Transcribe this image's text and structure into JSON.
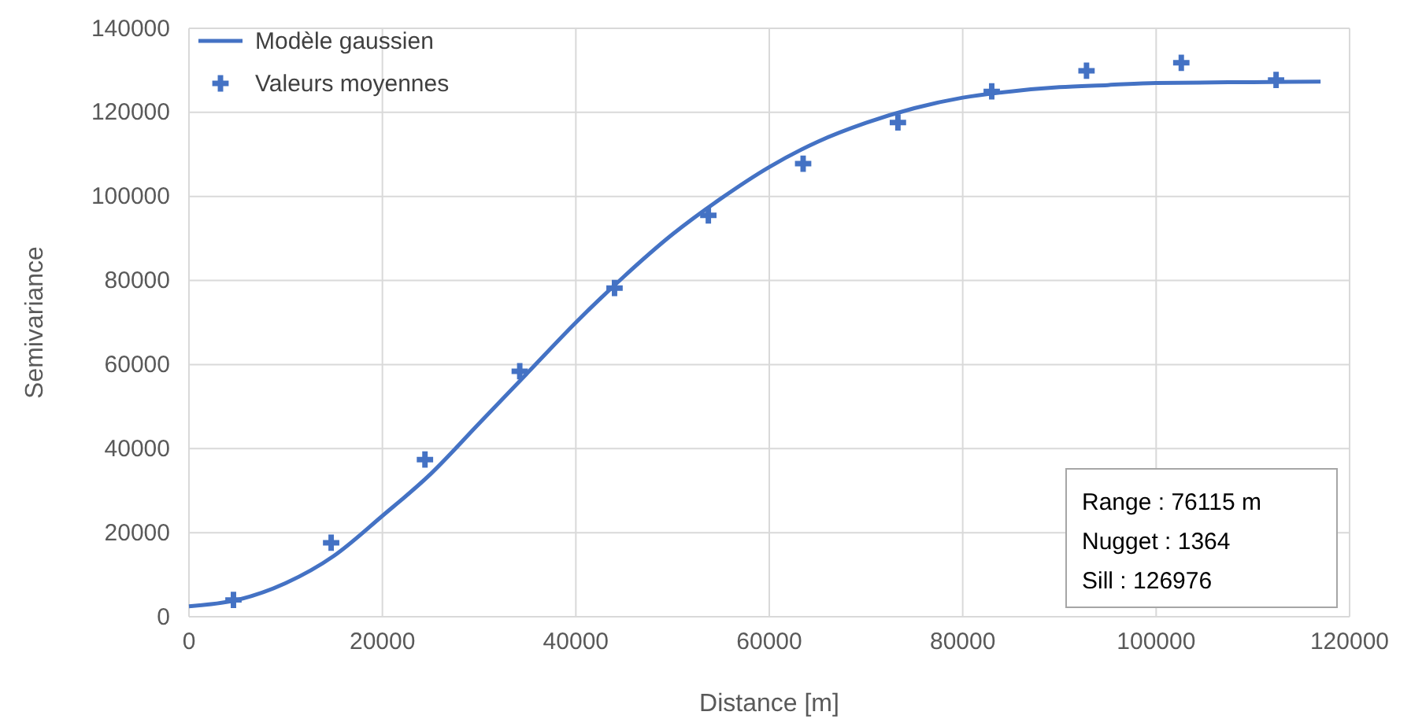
{
  "chart_data": {
    "type": "line",
    "xlabel": "Distance [m]",
    "ylabel": "Semivariance",
    "xlim": [
      0,
      120000
    ],
    "xticks": [
      0,
      20000,
      40000,
      60000,
      80000,
      100000,
      120000
    ],
    "ylim": [
      0,
      140000
    ],
    "yticks": [
      0,
      20000,
      40000,
      60000,
      80000,
      100000,
      120000,
      140000
    ],
    "grid": true,
    "legend": "top left",
    "series": [
      {
        "name": "Modèle gaussien",
        "color": "#4472c4",
        "marker": "none",
        "x": [
          0,
          5000,
          10000,
          15000,
          20000,
          25000,
          30000,
          35000,
          40000,
          45000,
          50000,
          55000,
          60000,
          65000,
          70000,
          75000,
          80000,
          85000,
          90000,
          95000,
          100000,
          110000,
          117000
        ],
        "values": [
          2500,
          4000,
          8000,
          14500,
          24000,
          34000,
          46000,
          58000,
          70000,
          81000,
          91000,
          99500,
          107000,
          113000,
          117500,
          121000,
          123500,
          125000,
          126000,
          126500,
          127000,
          127200,
          127300
        ]
      },
      {
        "name": "Valeurs moyennes",
        "type": "scatter",
        "color": "#4472c4",
        "marker": "cross",
        "x": [
          4600,
          14700,
          24400,
          34200,
          44000,
          53700,
          63500,
          73300,
          83000,
          92800,
          102600,
          112400
        ],
        "values": [
          4000,
          17600,
          37400,
          58400,
          78200,
          95500,
          107800,
          117600,
          125000,
          129900,
          131800,
          127700
        ]
      }
    ],
    "annotations": [
      "Range : 76115 m",
      "Nugget : 1364",
      "Sill : 126976"
    ]
  }
}
